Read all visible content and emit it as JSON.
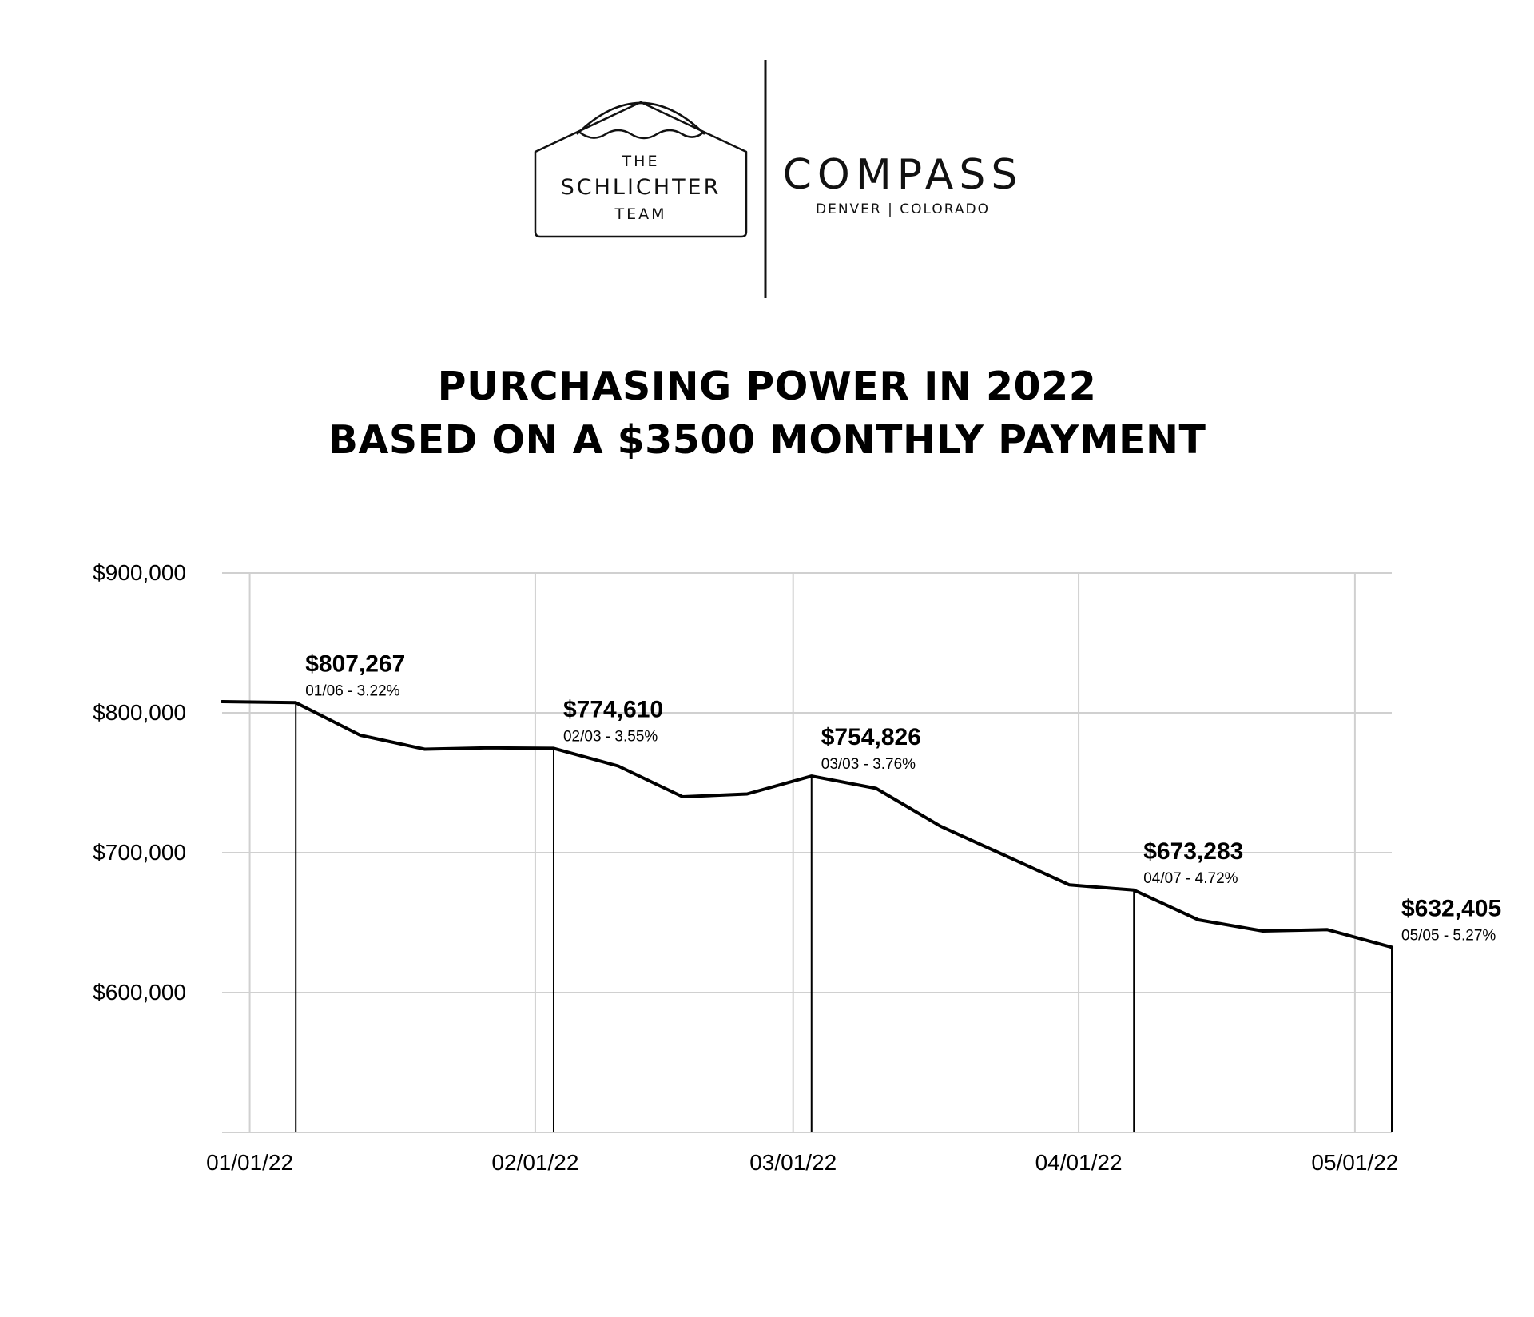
{
  "header": {
    "team_logo": {
      "line1": "THE",
      "line2": "SCHLICHTER",
      "line3": "TEAM"
    },
    "brand_logo": {
      "name": "COMPASS",
      "location": "DENVER | COLORADO"
    }
  },
  "chart_data": {
    "type": "line",
    "title": "PURCHASING POWER IN 2022",
    "subtitle": "BASED ON A $3500 MONTHLY PAYMENT",
    "xlabel": "",
    "ylabel": "",
    "x_ticks": [
      "01/01/22",
      "02/01/22",
      "03/01/22",
      "04/01/22",
      "05/01/22"
    ],
    "y_ticks": [
      "$900,000",
      "$800,000",
      "$700,000",
      "$600,000"
    ],
    "ylim": [
      500000,
      900000
    ],
    "xlim": [
      "2021-12-29",
      "2022-05-05"
    ],
    "grid": true,
    "series": [
      {
        "x": [
          "2021-12-29",
          "2022-01-06",
          "2022-01-13",
          "2022-01-20",
          "2022-01-27",
          "2022-02-03",
          "2022-02-10",
          "2022-02-17",
          "2022-02-24",
          "2022-03-03",
          "2022-03-10",
          "2022-03-17",
          "2022-03-24",
          "2022-03-31",
          "2022-04-07",
          "2022-04-14",
          "2022-04-21",
          "2022-04-28",
          "2022-05-05"
        ],
        "y": [
          808000,
          807267,
          784000,
          774000,
          775000,
          774610,
          762000,
          740000,
          742000,
          754826,
          746000,
          719000,
          698000,
          677000,
          673283,
          652000,
          644000,
          645000,
          632405
        ]
      }
    ],
    "annotations": [
      {
        "x": "2022-01-06",
        "value_label": "$807,267",
        "detail": "01/06 - 3.22%"
      },
      {
        "x": "2022-02-03",
        "value_label": "$774,610",
        "detail": "02/03 - 3.55%"
      },
      {
        "x": "2022-03-03",
        "value_label": "$754,826",
        "detail": "03/03 - 3.76%"
      },
      {
        "x": "2022-04-07",
        "value_label": "$673,283",
        "detail": "04/07 - 4.72%"
      },
      {
        "x": "2022-05-05",
        "value_label": "$632,405",
        "detail": "05/05 - 5.27%"
      }
    ]
  }
}
